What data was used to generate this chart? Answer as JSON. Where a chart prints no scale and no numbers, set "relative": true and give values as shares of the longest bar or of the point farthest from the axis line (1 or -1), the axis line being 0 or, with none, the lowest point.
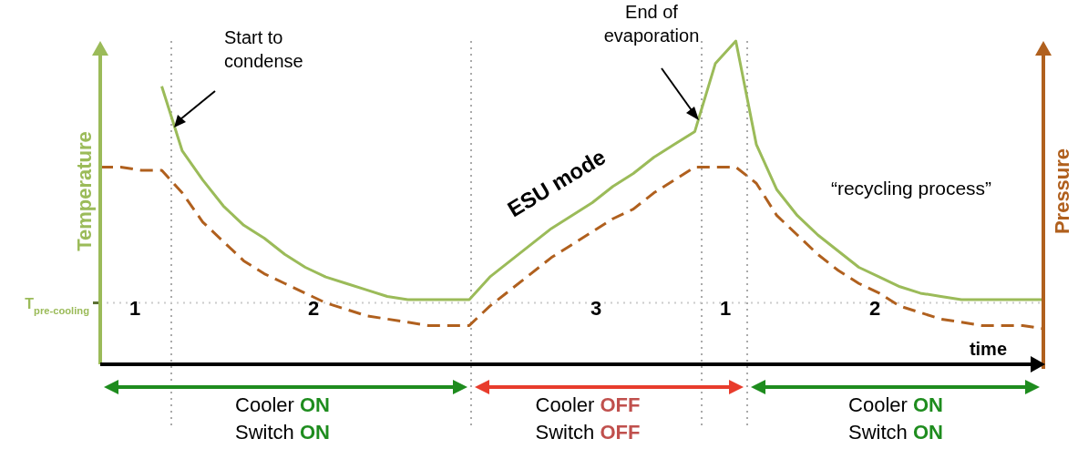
{
  "chart_data": {
    "type": "line",
    "relative": true,
    "xlabel": "time",
    "ylabel": "Temperature",
    "y2label": "Pressure",
    "marker": "none",
    "categories": [
      null,
      null,
      null,
      null,
      null,
      null,
      null,
      null,
      null,
      null,
      null,
      null,
      null,
      null,
      null,
      null,
      null,
      null,
      null,
      null,
      null,
      null,
      null,
      null,
      null,
      null,
      null,
      null,
      null,
      null,
      null,
      null,
      null,
      null,
      null,
      null,
      null,
      null,
      null,
      null,
      null,
      null,
      null,
      null,
      null,
      null,
      null
    ],
    "series": [
      {
        "color": "#9bbb59",
        "line_style": "solid",
        "values": [
          null,
          null,
          null,
          0.86,
          0.66,
          0.57,
          0.49,
          0.43,
          0.39,
          0.34,
          0.3,
          0.27,
          0.25,
          0.23,
          0.21,
          0.2,
          0.2,
          0.2,
          0.2,
          0.27,
          0.32,
          0.37,
          0.42,
          0.46,
          0.5,
          0.55,
          0.59,
          0.64,
          0.68,
          0.72,
          0.93,
          1,
          0.68,
          0.54,
          0.46,
          0.4,
          0.35,
          0.3,
          0.27,
          0.24,
          0.22,
          0.21,
          0.2,
          0.2,
          0.2,
          0.2,
          0.2
        ]
      },
      {
        "color": "#b0601e",
        "line_style": "dashed",
        "values": [
          0.61,
          0.61,
          0.6,
          0.6,
          0.53,
          0.44,
          0.38,
          0.32,
          0.28,
          0.25,
          0.22,
          0.19,
          0.17,
          0.15,
          0.14,
          0.13,
          0.12,
          0.12,
          0.12,
          0.18,
          0.23,
          0.28,
          0.33,
          0.37,
          0.41,
          0.45,
          0.48,
          0.53,
          0.57,
          0.61,
          0.61,
          0.61,
          0.56,
          0.46,
          0.4,
          0.34,
          0.29,
          0.25,
          0.22,
          0.18,
          0.16,
          0.14,
          0.13,
          0.12,
          0.12,
          0.12,
          0.11
        ]
      }
    ],
    "ref_lines": [
      {
        "axis": "y",
        "value": 0.19,
        "label": "T$_{pre-cooling}$",
        "color": "#cccccc",
        "line_style": "dotted"
      }
    ],
    "annotations": [
      "Start to condense",
      "End of evaporation",
      "ESU mode",
      "“recycling process”",
      "1",
      "2",
      "3",
      "1",
      "2",
      "Cooler ON",
      "Switch ON",
      "Cooler OFF",
      "Switch OFF",
      "Cooler ON",
      "Switch ON"
    ]
  }
}
